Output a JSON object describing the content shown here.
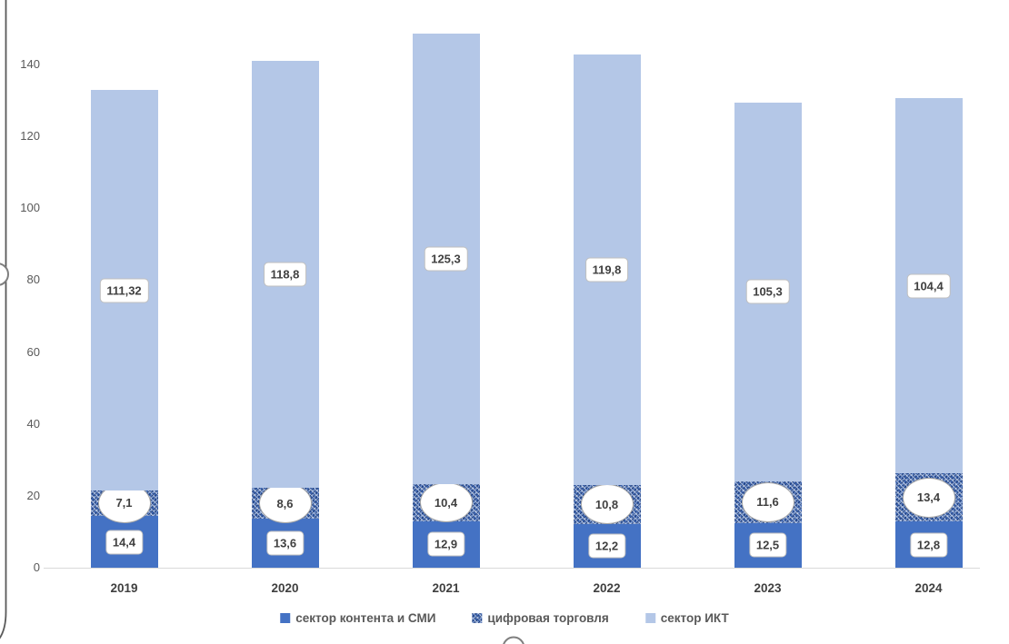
{
  "chart_data": {
    "type": "bar",
    "variant": "stacked-column",
    "title": "",
    "categories": [
      "2019",
      "2020",
      "2021",
      "2022",
      "2023",
      "2024"
    ],
    "series": [
      {
        "name": "сектор контента и СМИ",
        "fill": "solid",
        "color": "#4472C4",
        "label_shape": "rounded-rect",
        "values": [
          14.4,
          13.6,
          12.9,
          12.2,
          12.5,
          12.8
        ],
        "labels": [
          "14,4",
          "13,6",
          "12,9",
          "12,2",
          "12,5",
          "12,8"
        ]
      },
      {
        "name": "цифровая торговля",
        "fill": "pattern",
        "color": "#3B64B0",
        "label_shape": "ellipse",
        "values": [
          7.1,
          8.6,
          10.4,
          10.8,
          11.6,
          13.4
        ],
        "labels": [
          "7,1",
          "8,6",
          "10,4",
          "10,8",
          "11,6",
          "13,4"
        ]
      },
      {
        "name": "сектор ИКТ",
        "fill": "solid",
        "color": "#B4C7E7",
        "label_shape": "rounded-rect",
        "values": [
          111.32,
          118.8,
          125.3,
          119.8,
          105.3,
          104.4
        ],
        "labels": [
          "111,32",
          "118,8",
          "125,3",
          "119,8",
          "105,3",
          "104,4"
        ]
      }
    ],
    "y_axis": {
      "tick_labels": [
        "0",
        "20",
        "40",
        "60",
        "80",
        "100",
        "120",
        "140"
      ],
      "tick_values": [
        0,
        20,
        40,
        60,
        80,
        100,
        120,
        140
      ],
      "min": 0,
      "max": 140,
      "gridlines": false
    },
    "legend": {
      "position": "bottom",
      "items": [
        "сектор контента и СМИ",
        "цифровая торговля",
        "сектор ИКТ"
      ]
    },
    "colors": {
      "axis_line_vertical": "#595959",
      "axis_line_horizontal": "#d9d9d9",
      "label_text": "#404040",
      "tick_text": "#595959"
    }
  }
}
